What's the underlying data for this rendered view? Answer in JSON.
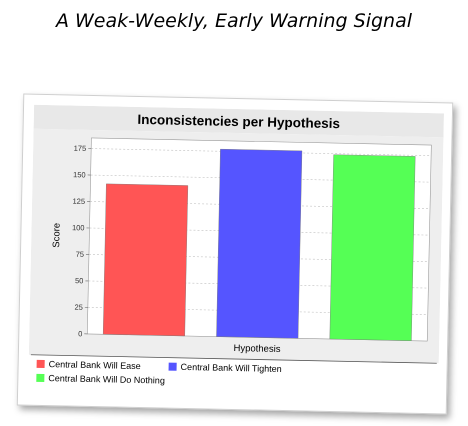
{
  "page": {
    "heading": "A Weak-Weekly, Early Warning Signal"
  },
  "chart_data": {
    "type": "bar",
    "title": "Inconsistencies per Hypothesis",
    "xlabel": "Hypothesis",
    "ylabel": "Score",
    "ylim": [
      0,
      185
    ],
    "yticks": [
      0,
      25,
      50,
      75,
      100,
      125,
      150,
      175
    ],
    "grid": true,
    "legend_position": "bottom",
    "series": [
      {
        "name": "Central Bank Will Ease",
        "value": 142,
        "color": "#ff5555"
      },
      {
        "name": "Central Bank Will Tighten",
        "value": 177,
        "color": "#5555ff"
      },
      {
        "name": "Central Bank Will Do Nothing",
        "value": 174,
        "color": "#55ff55"
      }
    ]
  }
}
